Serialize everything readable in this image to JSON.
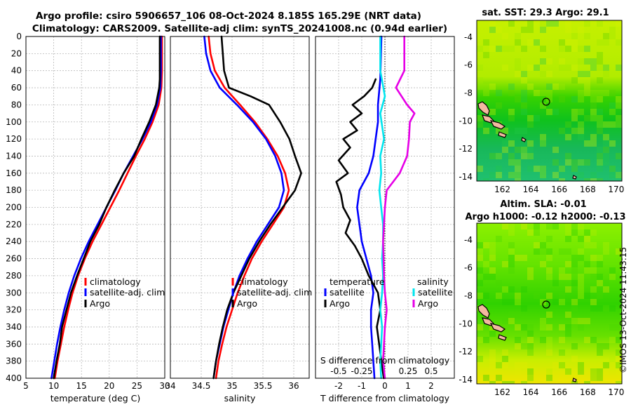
{
  "title": {
    "line1": "Argo profile: csiro 5906657_106 08-Oct-2024 8.185S 165.29E (NRT data)",
    "line2": "Climatology: CARS2009. Satellite-adj clim: synTS_20241008.nc (0.94d earlier)"
  },
  "depth_ticks": [
    0,
    20,
    40,
    60,
    80,
    100,
    120,
    140,
    160,
    180,
    200,
    220,
    240,
    260,
    280,
    300,
    320,
    340,
    360,
    380,
    400
  ],
  "colors": {
    "climatology": "#ff0000",
    "satellite": "#0000ff",
    "argo": "#000000",
    "t_sat": "#00e5ee",
    "s_argo": "#e600e6"
  },
  "chart_data": [
    {
      "id": "temperature",
      "type": "line",
      "xlabel": "temperature (deg C)",
      "ylabel": "depth",
      "xlim": [
        5,
        30
      ],
      "ylim": [
        400,
        0
      ],
      "xticks": [
        5,
        10,
        15,
        20,
        25,
        30
      ],
      "legend": [
        "climatology",
        "satellite-adj. clim",
        "Argo"
      ],
      "series": [
        {
          "name": "climatology",
          "color": "#ff0000",
          "points": [
            [
              29.5,
              0
            ],
            [
              29.5,
              40
            ],
            [
              29.4,
              60
            ],
            [
              28.9,
              80
            ],
            [
              27.8,
              100
            ],
            [
              26.4,
              120
            ],
            [
              24.8,
              140
            ],
            [
              23.3,
              160
            ],
            [
              21.8,
              180
            ],
            [
              20.2,
              200
            ],
            [
              18.6,
              220
            ],
            [
              17.0,
              240
            ],
            [
              15.6,
              260
            ],
            [
              14.4,
              280
            ],
            [
              13.4,
              300
            ],
            [
              12.6,
              320
            ],
            [
              11.9,
              340
            ],
            [
              11.3,
              360
            ],
            [
              10.7,
              380
            ],
            [
              10.2,
              400
            ]
          ]
        },
        {
          "name": "satellite-adj. clim",
          "color": "#0000ff",
          "points": [
            [
              29.3,
              0
            ],
            [
              29.3,
              40
            ],
            [
              29.2,
              60
            ],
            [
              28.6,
              80
            ],
            [
              27.5,
              100
            ],
            [
              26.0,
              120
            ],
            [
              24.3,
              140
            ],
            [
              22.6,
              160
            ],
            [
              21.1,
              180
            ],
            [
              19.5,
              200
            ],
            [
              17.9,
              220
            ],
            [
              16.3,
              240
            ],
            [
              14.9,
              260
            ],
            [
              13.7,
              280
            ],
            [
              12.7,
              300
            ],
            [
              11.9,
              320
            ],
            [
              11.2,
              340
            ],
            [
              10.6,
              360
            ],
            [
              10.1,
              380
            ],
            [
              9.6,
              400
            ]
          ]
        },
        {
          "name": "Argo",
          "color": "#000000",
          "points": [
            [
              29.1,
              0
            ],
            [
              29.1,
              50
            ],
            [
              29.0,
              60
            ],
            [
              28.4,
              80
            ],
            [
              27.2,
              100
            ],
            [
              25.8,
              120
            ],
            [
              24.5,
              140
            ],
            [
              22.6,
              160
            ],
            [
              21.0,
              180
            ],
            [
              19.5,
              200
            ],
            [
              18.2,
              220
            ],
            [
              16.6,
              240
            ],
            [
              15.4,
              260
            ],
            [
              14.2,
              280
            ],
            [
              13.1,
              300
            ],
            [
              12.3,
              320
            ],
            [
              11.5,
              340
            ],
            [
              11.1,
              360
            ],
            [
              10.5,
              380
            ],
            [
              10.0,
              400
            ]
          ]
        }
      ]
    },
    {
      "id": "salinity",
      "type": "line",
      "xlabel": "salinity",
      "ylabel": "depth",
      "xlim": [
        34,
        36.25
      ],
      "ylim": [
        400,
        0
      ],
      "xticks": [
        34,
        34.5,
        35,
        35.5,
        36
      ],
      "legend": [
        "climatology",
        "satellite-adj. clim",
        "Argo"
      ],
      "series": [
        {
          "name": "climatology",
          "color": "#ff0000",
          "points": [
            [
              34.62,
              0
            ],
            [
              34.65,
              20
            ],
            [
              34.72,
              40
            ],
            [
              34.88,
              60
            ],
            [
              35.13,
              80
            ],
            [
              35.37,
              100
            ],
            [
              35.57,
              120
            ],
            [
              35.74,
              140
            ],
            [
              35.86,
              160
            ],
            [
              35.92,
              180
            ],
            [
              35.84,
              200
            ],
            [
              35.66,
              220
            ],
            [
              35.48,
              240
            ],
            [
              35.32,
              260
            ],
            [
              35.2,
              280
            ],
            [
              35.09,
              300
            ],
            [
              35.0,
              320
            ],
            [
              34.91,
              340
            ],
            [
              34.84,
              360
            ],
            [
              34.78,
              380
            ],
            [
              34.74,
              400
            ]
          ]
        },
        {
          "name": "satellite-adj. clim",
          "color": "#0000ff",
          "points": [
            [
              34.55,
              0
            ],
            [
              34.58,
              20
            ],
            [
              34.65,
              40
            ],
            [
              34.8,
              60
            ],
            [
              35.08,
              80
            ],
            [
              35.34,
              100
            ],
            [
              35.55,
              120
            ],
            [
              35.7,
              140
            ],
            [
              35.8,
              160
            ],
            [
              35.84,
              180
            ],
            [
              35.76,
              200
            ],
            [
              35.58,
              220
            ],
            [
              35.4,
              240
            ],
            [
              35.25,
              260
            ],
            [
              35.12,
              280
            ],
            [
              35.02,
              300
            ],
            [
              34.94,
              320
            ],
            [
              34.86,
              340
            ],
            [
              34.8,
              360
            ],
            [
              34.74,
              380
            ],
            [
              34.7,
              400
            ]
          ]
        },
        {
          "name": "Argo",
          "color": "#000000",
          "points": [
            [
              34.83,
              0
            ],
            [
              34.85,
              20
            ],
            [
              34.87,
              40
            ],
            [
              34.95,
              60
            ],
            [
              35.3,
              70
            ],
            [
              35.6,
              80
            ],
            [
              35.78,
              100
            ],
            [
              35.93,
              120
            ],
            [
              36.02,
              140
            ],
            [
              36.12,
              160
            ],
            [
              36.02,
              180
            ],
            [
              35.82,
              200
            ],
            [
              35.62,
              220
            ],
            [
              35.44,
              240
            ],
            [
              35.28,
              260
            ],
            [
              35.15,
              280
            ],
            [
              35.02,
              300
            ],
            [
              34.92,
              320
            ],
            [
              34.85,
              340
            ],
            [
              34.79,
              360
            ],
            [
              34.74,
              380
            ],
            [
              34.7,
              400
            ]
          ]
        }
      ]
    },
    {
      "id": "difference",
      "type": "line",
      "xlabel": "T difference from climatology",
      "xlabel_top": "S difference from climatology",
      "xlim": [
        -3,
        3
      ],
      "ylim": [
        400,
        0
      ],
      "xticks": [
        -2,
        -1,
        0,
        1,
        2
      ],
      "xtick_labels": [
        "-2",
        "-1",
        "0",
        "1",
        "2"
      ],
      "xlim_s": [
        -0.75,
        0.75
      ],
      "xticks_s": [
        -0.5,
        -0.25,
        0.25,
        0.5
      ],
      "xtick_labels_s": [
        "-0.5",
        "-0.25",
        "0.25",
        "0.5"
      ],
      "legend_t": {
        "heading": "temperature",
        "items": [
          "satellite",
          "Argo"
        ]
      },
      "legend_s": {
        "heading": "salinity",
        "items": [
          "satellite",
          "Argo"
        ]
      },
      "series": [
        {
          "name": "T satellite",
          "color": "#0000ff",
          "points": [
            [
              -0.15,
              0
            ],
            [
              -0.2,
              50
            ],
            [
              -0.3,
              80
            ],
            [
              -0.3,
              100
            ],
            [
              -0.4,
              120
            ],
            [
              -0.5,
              140
            ],
            [
              -0.7,
              160
            ],
            [
              -1.1,
              180
            ],
            [
              -1.2,
              200
            ],
            [
              -1.1,
              220
            ],
            [
              -1.0,
              240
            ],
            [
              -0.8,
              260
            ],
            [
              -0.6,
              280
            ],
            [
              -0.5,
              300
            ],
            [
              -0.6,
              320
            ],
            [
              -0.6,
              340
            ],
            [
              -0.55,
              360
            ],
            [
              -0.5,
              380
            ],
            [
              -0.45,
              400
            ]
          ]
        },
        {
          "name": "T Argo",
          "color": "#000000",
          "points": [
            [
              -0.4,
              50
            ],
            [
              -0.55,
              60
            ],
            [
              -0.9,
              70
            ],
            [
              -1.4,
              80
            ],
            [
              -1.0,
              90
            ],
            [
              -1.5,
              100
            ],
            [
              -1.2,
              110
            ],
            [
              -1.8,
              120
            ],
            [
              -1.5,
              130
            ],
            [
              -2.0,
              145
            ],
            [
              -1.6,
              160
            ],
            [
              -2.1,
              170
            ],
            [
              -1.9,
              185
            ],
            [
              -1.8,
              200
            ],
            [
              -1.5,
              215
            ],
            [
              -1.7,
              230
            ],
            [
              -1.3,
              245
            ],
            [
              -1.0,
              260
            ],
            [
              -0.7,
              280
            ],
            [
              -0.3,
              300
            ],
            [
              -0.2,
              320
            ],
            [
              -0.35,
              340
            ],
            [
              -0.25,
              360
            ],
            [
              -0.15,
              380
            ],
            [
              -0.05,
              400
            ]
          ]
        },
        {
          "name": "S satellite",
          "color": "#00e5ee",
          "points": [
            [
              -0.05,
              0
            ],
            [
              -0.05,
              40
            ],
            [
              0,
              70
            ],
            [
              -0.05,
              90
            ],
            [
              -0.01,
              120
            ],
            [
              -0.05,
              140
            ],
            [
              -0.04,
              160
            ],
            [
              -0.06,
              180
            ],
            [
              -0.04,
              200
            ],
            [
              -0.02,
              220
            ],
            [
              -0.02,
              240
            ],
            [
              -0.03,
              260
            ],
            [
              -0.02,
              280
            ],
            [
              -0.03,
              300
            ],
            [
              -0.05,
              320
            ],
            [
              -0.03,
              340
            ],
            [
              -0.04,
              360
            ],
            [
              -0.05,
              380
            ],
            [
              -0.04,
              400
            ]
          ]
        },
        {
          "name": "S Argo",
          "color": "#e600e6",
          "points": [
            [
              0.21,
              0
            ],
            [
              0.21,
              40
            ],
            [
              0.12,
              60
            ],
            [
              0.24,
              80
            ],
            [
              0.32,
              90
            ],
            [
              0.27,
              100
            ],
            [
              0.26,
              120
            ],
            [
              0.24,
              140
            ],
            [
              0.16,
              160
            ],
            [
              0.02,
              180
            ],
            [
              0.0,
              200
            ],
            [
              -0.02,
              240
            ],
            [
              -0.01,
              280
            ],
            [
              0.0,
              300
            ],
            [
              0.02,
              320
            ],
            [
              0.0,
              340
            ],
            [
              -0.01,
              360
            ],
            [
              -0.02,
              380
            ],
            [
              0.0,
              400
            ]
          ]
        }
      ]
    },
    {
      "id": "sst-map",
      "type": "heatmap",
      "title": "sat. SST: 29.3 Argo: 29.1",
      "xlim": [
        160.2,
        170.4
      ],
      "ylim": [
        -14.3,
        -2.8
      ],
      "xticks": [
        162,
        164,
        166,
        168,
        170
      ],
      "yticks": [
        -4,
        -6,
        -8,
        -10,
        -12,
        -14
      ],
      "marker": {
        "lon": 165.29,
        "lat": -8.185
      }
    },
    {
      "id": "sla-map",
      "type": "heatmap",
      "title": "Altim. SLA: -0.01",
      "subtitle": "Argo h1000: -0.12 h2000: -0.13",
      "xlim": [
        160.2,
        170.4
      ],
      "ylim": [
        -14.3,
        -2.8
      ],
      "xticks": [
        162,
        164,
        166,
        168,
        170
      ],
      "yticks": [
        -4,
        -6,
        -8,
        -10,
        -12,
        -14
      ],
      "marker": {
        "lon": 165.29,
        "lat": -8.185
      }
    }
  ],
  "watermark": "©IMOS 13-Oct-2024 11:43:15"
}
